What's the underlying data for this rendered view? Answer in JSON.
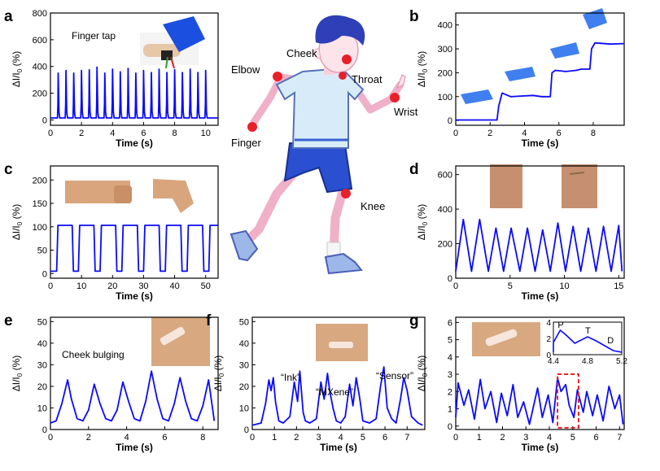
{
  "figure": {
    "figure_label": "",
    "body_labels": [
      "Elbow",
      "Cheek",
      "Throat",
      "Wrist",
      "Finger",
      "Knee"
    ],
    "series_color": "#0a0aff",
    "marker_color": "#e8202a",
    "highlight_color": "#e8202a"
  },
  "chart_data": [
    {
      "id": "a",
      "type": "line",
      "panel_label": "a",
      "annotation": "Finger tap",
      "xlabel": "Time (s)",
      "ylabel": "ΔI/I0 (%)",
      "xlim": [
        0,
        10.8
      ],
      "ylim": [
        -40,
        800
      ],
      "xticks": [
        0,
        2,
        4,
        6,
        8,
        10
      ],
      "yticks": [
        0,
        200,
        400,
        600,
        800
      ],
      "x": [
        0,
        0.45,
        0.48,
        0.5,
        0.55,
        0.6,
        0.95,
        0.98,
        1.0,
        1.05,
        1.1,
        1.45,
        1.48,
        1.5,
        1.55,
        1.6,
        1.95,
        1.98,
        2.0,
        2.05,
        2.1,
        2.45,
        2.48,
        2.5,
        2.55,
        2.6,
        2.95,
        2.98,
        3.0,
        3.05,
        3.1,
        3.45,
        3.48,
        3.5,
        3.55,
        3.6,
        3.95,
        3.98,
        4.0,
        4.05,
        4.1,
        4.45,
        4.48,
        4.5,
        4.55,
        4.6,
        4.95,
        4.98,
        5.0,
        5.05,
        5.1,
        5.45,
        5.48,
        5.5,
        5.55,
        5.6,
        5.95,
        5.98,
        6.0,
        6.05,
        6.1,
        6.45,
        6.48,
        6.5,
        6.55,
        6.6,
        6.95,
        6.98,
        7.0,
        7.05,
        7.1,
        7.45,
        7.48,
        7.5,
        7.55,
        7.6,
        7.95,
        7.98,
        8.0,
        8.05,
        8.1,
        8.45,
        8.48,
        8.5,
        8.55,
        8.6,
        8.95,
        8.98,
        9.0,
        9.05,
        9.1,
        9.45,
        9.48,
        9.5,
        9.55,
        9.6,
        9.95,
        9.98,
        10.0,
        10.05,
        10.1,
        10.8
      ],
      "y": [
        15,
        15,
        120,
        350,
        60,
        15,
        15,
        120,
        370,
        60,
        15,
        15,
        120,
        350,
        60,
        15,
        15,
        120,
        370,
        60,
        15,
        15,
        120,
        375,
        60,
        15,
        15,
        120,
        395,
        60,
        15,
        15,
        120,
        350,
        60,
        15,
        15,
        120,
        380,
        60,
        15,
        15,
        120,
        360,
        60,
        15,
        15,
        120,
        385,
        60,
        15,
        15,
        120,
        350,
        60,
        15,
        15,
        120,
        370,
        60,
        15,
        15,
        120,
        355,
        60,
        15,
        15,
        120,
        380,
        60,
        15,
        15,
        120,
        355,
        60,
        15,
        15,
        120,
        375,
        60,
        15,
        15,
        120,
        355,
        60,
        15,
        15,
        120,
        380,
        60,
        15,
        15,
        120,
        355,
        60,
        15,
        15,
        120,
        370,
        60,
        15,
        15
      ]
    },
    {
      "id": "b",
      "type": "line",
      "panel_label": "b",
      "annotation": "",
      "xlabel": "Time (s)",
      "ylabel": "ΔI/I0 (%)",
      "xlim": [
        0,
        9.8
      ],
      "ylim": [
        -20,
        450
      ],
      "xticks": [
        0,
        2,
        4,
        6,
        8
      ],
      "yticks": [
        0,
        100,
        200,
        300,
        400
      ],
      "x": [
        0,
        2.4,
        2.5,
        2.7,
        3.2,
        4.5,
        5.0,
        5.5,
        5.6,
        5.8,
        6.4,
        7.0,
        7.3,
        7.8,
        7.9,
        8.1,
        9.0,
        9.8
      ],
      "y": [
        2,
        2,
        60,
        115,
        100,
        105,
        100,
        100,
        200,
        210,
        205,
        210,
        215,
        215,
        300,
        325,
        320,
        322
      ]
    },
    {
      "id": "c",
      "type": "line",
      "panel_label": "c",
      "annotation": "",
      "xlabel": "Time (s)",
      "ylabel": "ΔI/I0 (%)",
      "xlim": [
        0,
        54
      ],
      "ylim": [
        -10,
        230
      ],
      "xticks": [
        0,
        10,
        20,
        30,
        40,
        50
      ],
      "yticks": [
        0,
        50,
        100,
        150,
        200
      ],
      "x": [
        0,
        2,
        2.4,
        7,
        7.4,
        9,
        9.4,
        14,
        14.4,
        16,
        16.4,
        21,
        21.4,
        23,
        23.4,
        28,
        28.4,
        30,
        30.4,
        35,
        35.4,
        37,
        37.4,
        42,
        42.4,
        44,
        44.4,
        49,
        49.4,
        51,
        51.4,
        54
      ],
      "y": [
        5,
        5,
        103,
        103,
        5,
        5,
        103,
        103,
        5,
        5,
        103,
        103,
        5,
        5,
        103,
        103,
        5,
        5,
        103,
        103,
        5,
        5,
        103,
        103,
        5,
        5,
        103,
        103,
        5,
        5,
        103,
        103
      ]
    },
    {
      "id": "d",
      "type": "line",
      "panel_label": "d",
      "annotation": "",
      "xlabel": "Time (s)",
      "ylabel": "ΔI/I0 (%)",
      "xlim": [
        0,
        15.5
      ],
      "ylim": [
        0,
        650
      ],
      "xticks": [
        0,
        5,
        10,
        15
      ],
      "yticks": [
        0,
        200,
        400,
        600
      ],
      "x": [
        0,
        0.7,
        1.45,
        2.2,
        3.0,
        3.7,
        4.4,
        5.1,
        5.9,
        6.6,
        7.3,
        8.0,
        8.7,
        9.4,
        10.1,
        10.8,
        11.5,
        12.2,
        12.9,
        13.6,
        14.3,
        15.0,
        15.3
      ],
      "y": [
        40,
        340,
        40,
        340,
        40,
        290,
        40,
        290,
        40,
        290,
        40,
        280,
        40,
        320,
        40,
        300,
        40,
        290,
        40,
        300,
        40,
        305,
        40
      ]
    },
    {
      "id": "e",
      "type": "line",
      "panel_label": "e",
      "annotation": "Cheek bulging",
      "xlabel": "Time (s)",
      "ylabel": "ΔI/I0 (%)",
      "xlim": [
        0,
        8.8
      ],
      "ylim": [
        0,
        52
      ],
      "xticks": [
        0,
        2,
        4,
        6,
        8
      ],
      "yticks": [
        0,
        10,
        20,
        30,
        40,
        50
      ],
      "x": [
        0,
        0.3,
        0.6,
        0.9,
        1.1,
        1.4,
        1.7,
        2.0,
        2.3,
        2.6,
        2.9,
        3.2,
        3.5,
        3.8,
        4.1,
        4.4,
        4.7,
        5.0,
        5.3,
        5.6,
        5.9,
        6.2,
        6.5,
        6.8,
        7.1,
        7.4,
        7.7,
        8.0,
        8.3,
        8.6
      ],
      "y": [
        3,
        4,
        12,
        23,
        14,
        5,
        4,
        9,
        21,
        12,
        5,
        4,
        9,
        22,
        13,
        5,
        4,
        13,
        27,
        14,
        5,
        4,
        12,
        24,
        13,
        5,
        4,
        11,
        23,
        4
      ]
    },
    {
      "id": "f",
      "type": "line",
      "panel_label": "f",
      "annotation": "",
      "labels": [
        "“Ink”",
        "“MXene”",
        "“Sensor”"
      ],
      "xlabel": "Time (s)",
      "ylabel": "ΔI/I0 (%)",
      "xlim": [
        0,
        7.8
      ],
      "ylim": [
        0,
        52
      ],
      "xticks": [
        0,
        1,
        2,
        3,
        4,
        5,
        6,
        7
      ],
      "yticks": [
        0,
        10,
        20,
        30,
        40,
        50
      ],
      "x": [
        0,
        0.4,
        0.6,
        0.75,
        0.85,
        0.95,
        1.05,
        1.2,
        1.4,
        1.7,
        1.9,
        2.05,
        2.15,
        2.3,
        2.4,
        2.6,
        2.9,
        3.1,
        3.25,
        3.4,
        3.5,
        3.65,
        3.8,
        4.0,
        4.2,
        4.4,
        4.55,
        4.7,
        4.85,
        5.0,
        5.3,
        5.6,
        5.8,
        5.95,
        6.1,
        6.3,
        6.5,
        6.7,
        6.85,
        7.0,
        7.2,
        7.5,
        7.7
      ],
      "y": [
        2,
        3,
        12,
        23,
        18,
        24,
        13,
        4,
        3,
        6,
        22,
        13,
        27,
        8,
        4,
        3,
        5,
        22,
        14,
        26,
        18,
        10,
        4,
        3,
        6,
        21,
        11,
        24,
        15,
        4,
        3,
        5,
        20,
        29,
        10,
        5,
        3,
        14,
        24,
        18,
        6,
        3,
        2
      ]
    },
    {
      "id": "g",
      "type": "line",
      "panel_label": "g",
      "annotation": "",
      "xlabel": "Time (s)",
      "ylabel": "ΔI/I0 (%)",
      "xlim": [
        0,
        7.2
      ],
      "ylim": [
        -0.2,
        6.3
      ],
      "xticks": [
        0,
        1,
        2,
        3,
        4,
        5,
        6,
        7
      ],
      "yticks": [
        0,
        1,
        2,
        3,
        4,
        5,
        6
      ],
      "x": [
        0,
        0.1,
        0.35,
        0.55,
        0.8,
        1.05,
        1.25,
        1.5,
        1.75,
        1.95,
        2.2,
        2.45,
        2.65,
        2.9,
        3.15,
        3.3,
        3.5,
        3.7,
        3.95,
        4.15,
        4.35,
        4.5,
        4.7,
        4.85,
        5.05,
        5.2,
        5.45,
        5.6,
        5.85,
        6.05,
        6.3,
        6.55,
        6.8,
        7.0,
        7.15
      ],
      "y": [
        0.5,
        2.5,
        1.2,
        2.1,
        0.4,
        2.7,
        1.0,
        2.0,
        0.2,
        1.9,
        0.6,
        2.4,
        0.5,
        1.4,
        0.1,
        1.0,
        2.2,
        0.5,
        1.8,
        0.2,
        2.8,
        2.0,
        2.4,
        1.2,
        0.5,
        2.1,
        0.8,
        2.0,
        0.6,
        1.8,
        0.3,
        2.3,
        1.0,
        1.8,
        0.1
      ],
      "inset": {
        "peak_labels": [
          "P",
          "T",
          "D"
        ],
        "xlim": [
          4.4,
          5.2
        ],
        "ylim": [
          0,
          4
        ],
        "xticks": [
          4.4,
          4.8,
          5.2
        ],
        "yticks": [
          0,
          2,
          4
        ],
        "x": [
          4.3,
          4.4,
          4.48,
          4.55,
          4.65,
          4.8,
          4.9,
          5.05,
          5.1,
          5.2
        ],
        "y": [
          0.3,
          1.5,
          3.0,
          2.4,
          1.4,
          2.2,
          1.7,
          0.8,
          0.5,
          0.3
        ]
      }
    }
  ]
}
